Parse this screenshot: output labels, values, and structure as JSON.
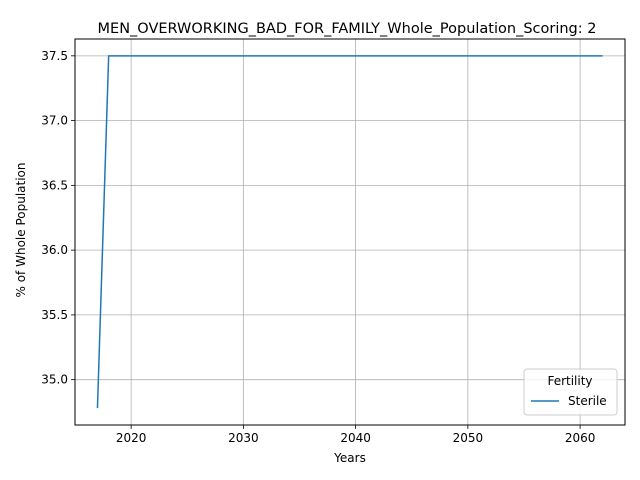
{
  "chart_data": {
    "type": "line",
    "title": "MEN_OVERWORKING_BAD_FOR_FAMILY_Whole_Population_Scoring: 2",
    "xlabel": "Years",
    "ylabel": "% of Whole Population",
    "xlim": [
      2015,
      2064
    ],
    "ylim": [
      34.65,
      37.63
    ],
    "xticks": [
      2020,
      2030,
      2040,
      2050,
      2060
    ],
    "yticks": [
      35.0,
      35.5,
      36.0,
      36.5,
      37.0,
      37.5
    ],
    "xtick_labels": [
      "2020",
      "2030",
      "2040",
      "2050",
      "2060"
    ],
    "ytick_labels": [
      "35.0",
      "35.5",
      "36.0",
      "36.5",
      "37.0",
      "37.5"
    ],
    "grid": true,
    "legend": {
      "title": "Fertility",
      "placement": "bottom-right"
    },
    "series": [
      {
        "name": "Sterile",
        "color": "#1f77b4",
        "x": [
          2017,
          2018,
          2019,
          2020,
          2021,
          2022,
          2023,
          2024,
          2025,
          2026,
          2027,
          2028,
          2029,
          2030,
          2031,
          2032,
          2033,
          2034,
          2035,
          2036,
          2037,
          2038,
          2039,
          2040,
          2041,
          2042,
          2043,
          2044,
          2045,
          2046,
          2047,
          2048,
          2049,
          2050,
          2051,
          2052,
          2053,
          2054,
          2055,
          2056,
          2057,
          2058,
          2059,
          2060,
          2061,
          2062
        ],
        "y": [
          34.78,
          37.5,
          37.5,
          37.5,
          37.5,
          37.5,
          37.5,
          37.5,
          37.5,
          37.5,
          37.5,
          37.5,
          37.5,
          37.5,
          37.5,
          37.5,
          37.5,
          37.5,
          37.5,
          37.5,
          37.5,
          37.5,
          37.5,
          37.5,
          37.5,
          37.5,
          37.5,
          37.5,
          37.5,
          37.5,
          37.5,
          37.5,
          37.5,
          37.5,
          37.5,
          37.5,
          37.5,
          37.5,
          37.5,
          37.5,
          37.5,
          37.5,
          37.5,
          37.5,
          37.5,
          37.5
        ]
      }
    ]
  }
}
